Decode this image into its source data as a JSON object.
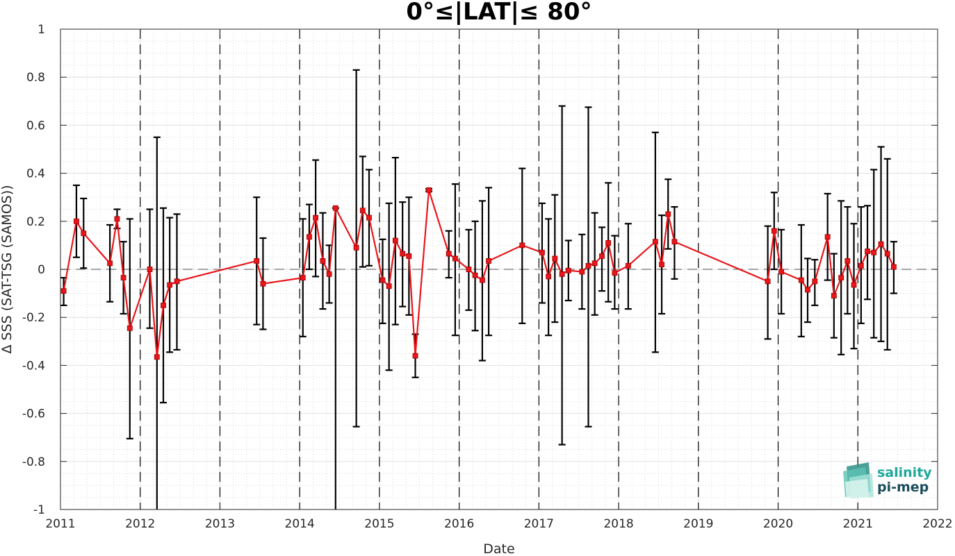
{
  "chart_data": {
    "type": "line",
    "title": "0°≤|LAT|≤ 80°",
    "xlabel": "Date",
    "ylabel": "Δ SSS (SAT-TSG (SAMOS))",
    "xlim": [
      2011,
      2022
    ],
    "ylim": [
      -1,
      1
    ],
    "x_ticks": [
      "2011",
      "2012",
      "2013",
      "2014",
      "2015",
      "2016",
      "2017",
      "2018",
      "2019",
      "2020",
      "2021",
      "2022"
    ],
    "y_ticks": [
      "1",
      "0.8",
      "0.6",
      "0.4",
      "0.2",
      "0",
      "-0.2",
      "-0.4",
      "-0.6",
      "-0.8",
      "-1"
    ],
    "grid": true,
    "year_boundaries": "dashed",
    "zero_line": "dashed",
    "series_color": "#e8161b",
    "errorbar_color": "#000000",
    "series": [
      {
        "marker": "square",
        "x": [
          2011.04,
          2011.2,
          2011.29,
          2011.62,
          2011.71,
          2011.79,
          2011.87,
          2012.12,
          2012.21,
          2012.29,
          2012.37,
          2012.46,
          2013.46,
          2013.54,
          2014.04,
          2014.12,
          2014.2,
          2014.29,
          2014.37,
          2014.45,
          2014.71,
          2014.79,
          2014.87,
          2015.04,
          2015.12,
          2015.2,
          2015.29,
          2015.37,
          2015.45,
          2015.62,
          2015.87,
          2015.95,
          2016.12,
          2016.2,
          2016.29,
          2016.37,
          2016.79,
          2017.04,
          2017.12,
          2017.2,
          2017.29,
          2017.37,
          2017.54,
          2017.62,
          2017.7,
          2017.79,
          2017.87,
          2017.95,
          2018.12,
          2018.46,
          2018.54,
          2018.62,
          2018.7,
          2019.87,
          2019.95,
          2020.04,
          2020.29,
          2020.37,
          2020.46,
          2020.62,
          2020.7,
          2020.79,
          2020.87,
          2020.95,
          2021.04,
          2021.12,
          2021.2,
          2021.29,
          2021.37,
          2021.45
        ],
        "y": [
          -0.09,
          0.2,
          0.15,
          0.025,
          0.21,
          -0.035,
          -0.245,
          0.0,
          -0.365,
          -0.15,
          -0.065,
          -0.05,
          0.035,
          -0.06,
          -0.035,
          0.135,
          0.215,
          0.035,
          -0.02,
          0.255,
          0.09,
          0.245,
          0.215,
          -0.045,
          -0.07,
          0.12,
          0.065,
          0.055,
          -0.36,
          0.33,
          0.065,
          0.045,
          0.0,
          -0.025,
          -0.045,
          0.035,
          0.1,
          0.07,
          -0.03,
          0.045,
          -0.02,
          -0.005,
          -0.01,
          0.015,
          0.025,
          0.055,
          0.11,
          -0.015,
          0.015,
          0.115,
          0.02,
          0.23,
          0.115,
          -0.05,
          0.16,
          -0.01,
          -0.045,
          -0.085,
          -0.05,
          0.135,
          -0.11,
          -0.035,
          0.035,
          -0.065,
          0.015,
          0.075,
          0.07,
          0.105,
          0.065,
          0.01
        ],
        "err_low": [
          -0.15,
          0.05,
          0.005,
          -0.135,
          0.17,
          -0.185,
          -0.705,
          -0.245,
          -1.0,
          -0.555,
          -0.345,
          -0.335,
          -0.23,
          -0.25,
          -0.28,
          0.0,
          -0.03,
          -0.165,
          -0.14,
          -1.0,
          -0.655,
          0.01,
          0.015,
          -0.225,
          -0.42,
          -0.23,
          -0.155,
          -0.19,
          -0.45,
          0.325,
          -0.035,
          -0.275,
          -0.17,
          -0.255,
          -0.38,
          -0.275,
          -0.225,
          -0.14,
          -0.275,
          -0.22,
          -0.73,
          -0.13,
          -0.165,
          -0.655,
          -0.19,
          -0.09,
          -0.135,
          -0.165,
          -0.165,
          -0.345,
          -0.185,
          0.085,
          -0.04,
          -0.29,
          0.0,
          -0.185,
          -0.28,
          -0.22,
          -0.15,
          -0.045,
          -0.285,
          -0.355,
          -0.185,
          -0.33,
          -0.225,
          -0.125,
          -0.285,
          -0.3,
          -0.335,
          -0.1
        ],
        "err_high": [
          -0.035,
          0.35,
          0.295,
          0.185,
          0.25,
          0.115,
          0.21,
          0.25,
          0.55,
          0.255,
          0.215,
          0.23,
          0.3,
          0.13,
          0.21,
          0.27,
          0.455,
          0.235,
          0.1,
          0.255,
          0.83,
          0.47,
          0.415,
          0.125,
          0.275,
          0.465,
          0.28,
          0.3,
          -0.27,
          0.335,
          0.16,
          0.355,
          0.165,
          0.2,
          0.285,
          0.34,
          0.42,
          0.275,
          0.21,
          0.31,
          0.68,
          0.12,
          0.145,
          0.675,
          0.235,
          0.175,
          0.36,
          0.14,
          0.19,
          0.57,
          0.225,
          0.375,
          0.26,
          0.18,
          0.32,
          0.165,
          0.185,
          0.045,
          0.04,
          0.315,
          0.065,
          0.285,
          0.26,
          0.19,
          0.26,
          0.265,
          0.415,
          0.51,
          0.46,
          0.115
        ]
      }
    ]
  },
  "logo": {
    "line1": "salinity",
    "line2": "pi-mep",
    "color1": "#1fa89a",
    "color2": "#1a4d5c"
  }
}
